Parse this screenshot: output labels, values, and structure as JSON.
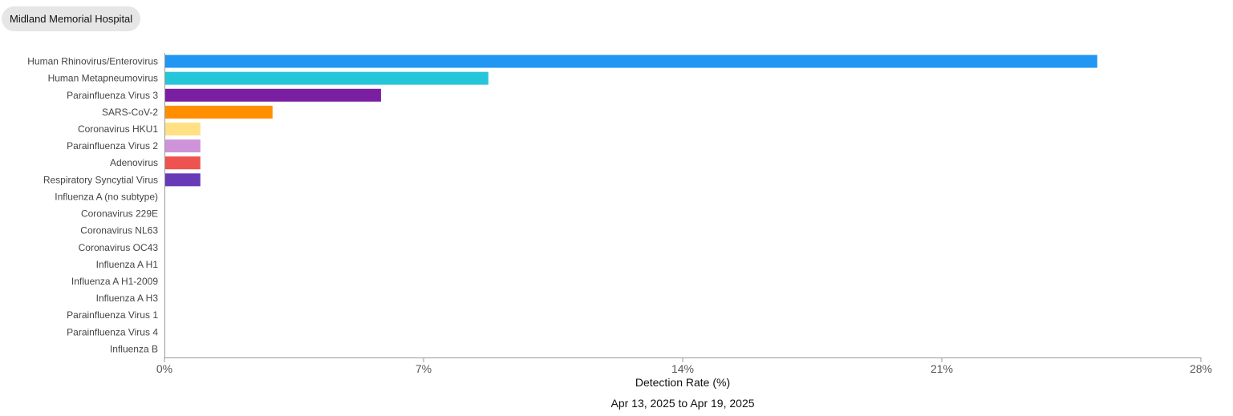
{
  "hospital": {
    "name": "Midland Memorial Hospital"
  },
  "chart_data": {
    "type": "bar",
    "orientation": "horizontal",
    "categories": [
      "Human Rhinovirus/Enterovirus",
      "Human Metapneumovirus",
      "Parainfluenza Virus 3",
      "SARS-CoV-2",
      "Coronavirus HKU1",
      "Parainfluenza Virus 2",
      "Adenovirus",
      "Respiratory Syncytial Virus",
      "Influenza A (no subtype)",
      "Coronavirus 229E",
      "Coronavirus NL63",
      "Coronavirus OC43",
      "Influenza A H1",
      "Influenza A H1-2009",
      "Influenza A H3",
      "Parainfluenza Virus 1",
      "Parainfluenza Virus 4",
      "Influenza B"
    ],
    "values": [
      25.2,
      8.75,
      5.85,
      2.92,
      0.97,
      0.97,
      0.97,
      0.97,
      0,
      0,
      0,
      0,
      0,
      0,
      0,
      0,
      0,
      0
    ],
    "colors": [
      "#2196f3",
      "#26c6da",
      "#7b1fa2",
      "#ff8f00",
      "#ffe082",
      "#ce93d8",
      "#ef5350",
      "#673ab7",
      "#9e9e9e",
      "#9e9e9e",
      "#9e9e9e",
      "#9e9e9e",
      "#9e9e9e",
      "#9e9e9e",
      "#9e9e9e",
      "#9e9e9e",
      "#9e9e9e",
      "#9e9e9e"
    ],
    "xlim": [
      0,
      28
    ],
    "xticks": [
      0,
      7,
      14,
      21,
      28
    ],
    "xtick_labels": [
      "0%",
      "7%",
      "14%",
      "21%",
      "28%"
    ],
    "xlabel": "Detection Rate (%)",
    "date_range": "Apr 13, 2025 to Apr 19, 2025",
    "grid": false
  }
}
